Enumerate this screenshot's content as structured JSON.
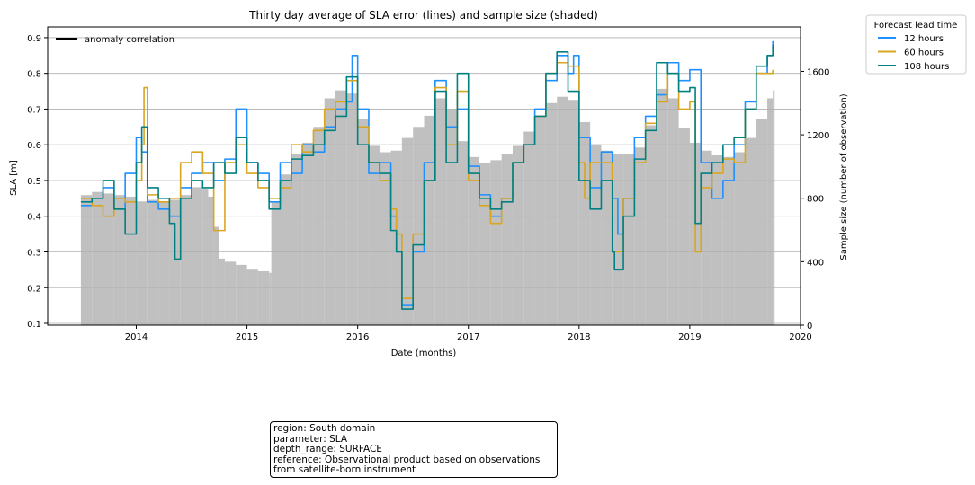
{
  "chart_data": {
    "type": "line",
    "title": "Thirty day average of SLA error (lines) and sample size (shaded)",
    "xlabel": "Date (months)",
    "ylabel": "SLA [m]",
    "y2label": "Sample size (number of observation)",
    "xlim": [
      2013.2,
      2020.0
    ],
    "ylim": [
      0.095,
      0.93
    ],
    "y2lim": [
      0,
      1880
    ],
    "x_ticks": [
      "2014",
      "2015",
      "2016",
      "2017",
      "2018",
      "2019",
      "2020"
    ],
    "y_ticks": [
      "0.1",
      "0.2",
      "0.3",
      "0.4",
      "0.5",
      "0.6",
      "0.7",
      "0.8",
      "0.9"
    ],
    "y2_ticks": [
      "0",
      "400",
      "800",
      "1200",
      "1600"
    ],
    "grid": "horizontal",
    "left_legend": {
      "label": "anomaly correlation",
      "color": "#000000"
    },
    "legend": {
      "title": "Forecast lead time",
      "placement": "outside-top-right"
    },
    "sample_size": {
      "color": "#c0c0c0",
      "x": [
        2013.5,
        2013.6,
        2013.7,
        2013.8,
        2013.9,
        2014.0,
        2014.1,
        2014.2,
        2014.3,
        2014.4,
        2014.5,
        2014.6,
        2014.65,
        2014.7,
        2014.75,
        2014.8,
        2014.9,
        2015.0,
        2015.1,
        2015.2,
        2015.22,
        2015.3,
        2015.4,
        2015.5,
        2015.6,
        2015.7,
        2015.8,
        2015.9,
        2016.0,
        2016.1,
        2016.2,
        2016.3,
        2016.4,
        2016.5,
        2016.6,
        2016.7,
        2016.8,
        2016.9,
        2017.0,
        2017.1,
        2017.2,
        2017.3,
        2017.4,
        2017.5,
        2017.6,
        2017.7,
        2017.8,
        2017.9,
        2018.0,
        2018.1,
        2018.2,
        2018.3,
        2018.4,
        2018.5,
        2018.6,
        2018.7,
        2018.8,
        2018.9,
        2019.0,
        2019.1,
        2019.2,
        2019.3,
        2019.4,
        2019.5,
        2019.6,
        2019.7,
        2019.75
      ],
      "values": [
        820,
        840,
        830,
        820,
        810,
        780,
        790,
        780,
        790,
        820,
        870,
        860,
        810,
        620,
        420,
        400,
        380,
        350,
        340,
        330,
        780,
        950,
        1080,
        1150,
        1250,
        1430,
        1480,
        1460,
        1300,
        1130,
        1090,
        1100,
        1180,
        1250,
        1320,
        1430,
        1360,
        1160,
        1060,
        1020,
        1040,
        1080,
        1130,
        1220,
        1320,
        1400,
        1440,
        1420,
        1280,
        1140,
        1100,
        1080,
        1080,
        1120,
        1260,
        1490,
        1430,
        1240,
        1150,
        1100,
        1070,
        1060,
        1090,
        1180,
        1300,
        1430,
        1480
      ]
    },
    "series": [
      {
        "name": "12 hours",
        "color": "#1e90ff",
        "x": [
          2013.5,
          2013.6,
          2013.7,
          2013.8,
          2013.9,
          2014.0,
          2014.05,
          2014.1,
          2014.2,
          2014.3,
          2014.4,
          2014.5,
          2014.6,
          2014.7,
          2014.8,
          2014.9,
          2015.0,
          2015.1,
          2015.2,
          2015.3,
          2015.4,
          2015.5,
          2015.6,
          2015.7,
          2015.8,
          2015.9,
          2015.95,
          2016.0,
          2016.1,
          2016.2,
          2016.3,
          2016.35,
          2016.4,
          2016.5,
          2016.6,
          2016.7,
          2016.8,
          2016.9,
          2017.0,
          2017.1,
          2017.2,
          2017.3,
          2017.4,
          2017.5,
          2017.6,
          2017.7,
          2017.8,
          2017.9,
          2017.95,
          2018.0,
          2018.1,
          2018.2,
          2018.3,
          2018.35,
          2018.4,
          2018.5,
          2018.6,
          2018.7,
          2018.8,
          2018.9,
          2019.0,
          2019.1,
          2019.2,
          2019.3,
          2019.4,
          2019.5,
          2019.6,
          2019.7,
          2019.75
        ],
        "values": [
          0.43,
          0.45,
          0.48,
          0.42,
          0.52,
          0.62,
          0.58,
          0.44,
          0.42,
          0.4,
          0.48,
          0.52,
          0.55,
          0.5,
          0.56,
          0.7,
          0.55,
          0.52,
          0.44,
          0.55,
          0.52,
          0.6,
          0.58,
          0.65,
          0.7,
          0.72,
          0.85,
          0.7,
          0.52,
          0.55,
          0.4,
          0.3,
          0.15,
          0.3,
          0.55,
          0.78,
          0.65,
          0.7,
          0.54,
          0.46,
          0.4,
          0.45,
          0.55,
          0.6,
          0.7,
          0.78,
          0.85,
          0.8,
          0.85,
          0.62,
          0.48,
          0.58,
          0.45,
          0.35,
          0.45,
          0.62,
          0.68,
          0.74,
          0.83,
          0.78,
          0.81,
          0.55,
          0.45,
          0.5,
          0.6,
          0.72,
          0.8,
          0.85,
          0.89
        ]
      },
      {
        "name": "60 hours",
        "color": "#daa520",
        "x": [
          2013.5,
          2013.6,
          2013.7,
          2013.8,
          2013.9,
          2014.0,
          2014.05,
          2014.07,
          2014.1,
          2014.2,
          2014.3,
          2014.4,
          2014.5,
          2014.6,
          2014.7,
          2014.8,
          2014.9,
          2015.0,
          2015.1,
          2015.2,
          2015.3,
          2015.4,
          2015.5,
          2015.6,
          2015.7,
          2015.8,
          2015.9,
          2016.0,
          2016.1,
          2016.2,
          2016.3,
          2016.35,
          2016.4,
          2016.5,
          2016.6,
          2016.7,
          2016.8,
          2016.9,
          2017.0,
          2017.1,
          2017.2,
          2017.3,
          2017.4,
          2017.5,
          2017.6,
          2017.7,
          2017.8,
          2017.9,
          2018.0,
          2018.05,
          2018.1,
          2018.2,
          2018.3,
          2018.4,
          2018.5,
          2018.6,
          2018.7,
          2018.8,
          2018.9,
          2019.0,
          2019.05,
          2019.1,
          2019.2,
          2019.3,
          2019.4,
          2019.5,
          2019.6,
          2019.7,
          2019.75
        ],
        "values": [
          0.45,
          0.43,
          0.4,
          0.45,
          0.44,
          0.5,
          0.6,
          0.76,
          0.46,
          0.44,
          0.45,
          0.55,
          0.58,
          0.52,
          0.36,
          0.55,
          0.6,
          0.52,
          0.48,
          0.45,
          0.48,
          0.6,
          0.58,
          0.64,
          0.7,
          0.72,
          0.78,
          0.65,
          0.55,
          0.5,
          0.42,
          0.35,
          0.17,
          0.35,
          0.5,
          0.76,
          0.6,
          0.75,
          0.5,
          0.43,
          0.38,
          0.45,
          0.55,
          0.6,
          0.68,
          0.8,
          0.83,
          0.82,
          0.55,
          0.45,
          0.55,
          0.55,
          0.3,
          0.45,
          0.55,
          0.66,
          0.72,
          0.8,
          0.7,
          0.72,
          0.3,
          0.48,
          0.52,
          0.56,
          0.55,
          0.7,
          0.8,
          0.8,
          0.81
        ]
      },
      {
        "name": "108 hours",
        "color": "#008080",
        "x": [
          2013.5,
          2013.6,
          2013.7,
          2013.8,
          2013.9,
          2014.0,
          2014.05,
          2014.1,
          2014.2,
          2014.3,
          2014.35,
          2014.4,
          2014.5,
          2014.6,
          2014.7,
          2014.8,
          2014.9,
          2015.0,
          2015.1,
          2015.2,
          2015.3,
          2015.4,
          2015.5,
          2015.6,
          2015.7,
          2015.8,
          2015.9,
          2016.0,
          2016.1,
          2016.2,
          2016.3,
          2016.35,
          2016.4,
          2016.5,
          2016.6,
          2016.7,
          2016.8,
          2016.9,
          2017.0,
          2017.1,
          2017.2,
          2017.3,
          2017.4,
          2017.5,
          2017.6,
          2017.7,
          2017.8,
          2017.9,
          2018.0,
          2018.1,
          2018.2,
          2018.3,
          2018.32,
          2018.4,
          2018.5,
          2018.6,
          2018.7,
          2018.8,
          2018.9,
          2019.0,
          2019.05,
          2019.1,
          2019.2,
          2019.3,
          2019.4,
          2019.5,
          2019.6,
          2019.7,
          2019.75
        ],
        "values": [
          0.44,
          0.45,
          0.5,
          0.42,
          0.35,
          0.55,
          0.65,
          0.48,
          0.45,
          0.38,
          0.28,
          0.45,
          0.5,
          0.48,
          0.55,
          0.52,
          0.62,
          0.55,
          0.5,
          0.42,
          0.5,
          0.56,
          0.57,
          0.6,
          0.64,
          0.68,
          0.79,
          0.6,
          0.55,
          0.52,
          0.36,
          0.3,
          0.14,
          0.32,
          0.5,
          0.75,
          0.55,
          0.8,
          0.52,
          0.45,
          0.42,
          0.44,
          0.55,
          0.6,
          0.68,
          0.8,
          0.86,
          0.75,
          0.5,
          0.42,
          0.5,
          0.3,
          0.25,
          0.4,
          0.56,
          0.64,
          0.83,
          0.8,
          0.75,
          0.76,
          0.38,
          0.52,
          0.55,
          0.6,
          0.62,
          0.7,
          0.82,
          0.85,
          0.88
        ]
      }
    ]
  },
  "info_box": {
    "lines": [
      "region: South domain",
      "parameter: SLA",
      "depth_range: SURFACE",
      "reference: Observational product based on observations",
      "from satellite-born instrument"
    ]
  }
}
